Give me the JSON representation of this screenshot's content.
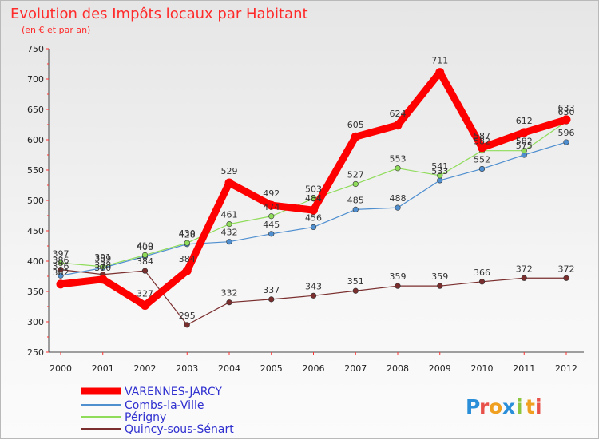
{
  "chart_data": {
    "type": "line",
    "title": "Evolution des Impôts locaux par Habitant",
    "subtitle": "(en € et par an)",
    "xlabel": "",
    "ylabel": "",
    "x": [
      "2000",
      "2001",
      "2002",
      "2003",
      "2004",
      "2005",
      "2006",
      "2007",
      "2008",
      "2009",
      "2010",
      "2011",
      "2012"
    ],
    "ylim": [
      250,
      750
    ],
    "yticks": [
      250,
      300,
      350,
      400,
      450,
      500,
      550,
      600,
      650,
      700,
      750
    ],
    "grid": false,
    "legend_position": "bottom-left",
    "series": [
      {
        "name": "VARENNES-JARCY",
        "color": "#ff0000",
        "values": [
          362,
          370,
          327,
          384,
          529,
          492,
          484,
          605,
          624,
          711,
          587,
          612,
          633
        ]
      },
      {
        "name": "Combs-la-Ville",
        "color": "#4f8fd0",
        "values": [
          376,
          389,
          408,
          428,
          432,
          445,
          456,
          485,
          488,
          533,
          552,
          575,
          596
        ]
      },
      {
        "name": "Périgny",
        "color": "#8fdc5a",
        "values": [
          397,
          391,
          410,
          430,
          461,
          474,
          503,
          527,
          553,
          541,
          582,
          582,
          630
        ]
      },
      {
        "name": "Quincy-sous-Sénart",
        "color": "#7a2e2e",
        "values": [
          386,
          378,
          384,
          295,
          332,
          337,
          343,
          351,
          359,
          359,
          366,
          372,
          372
        ]
      }
    ]
  },
  "brand": {
    "letters": [
      "P",
      "r",
      "o",
      "x",
      "i",
      "t",
      "i"
    ],
    "colors": [
      "#2a8fd8",
      "#e8504a",
      "#f0a020",
      "#2a8fd8",
      "#8cc63f",
      "#f0a020",
      "#e8504a"
    ]
  }
}
